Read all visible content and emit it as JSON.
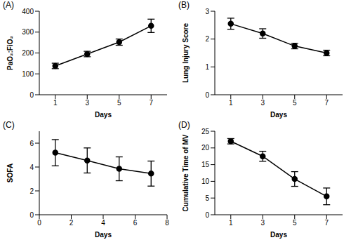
{
  "chart_data": [
    {
      "type": "line",
      "title": "(A)",
      "xlabel": "Days",
      "ylabel": "PaO₂:FiO₂",
      "x": [
        1,
        3,
        5,
        7
      ],
      "values": [
        138,
        195,
        252,
        330
      ],
      "errors": [
        13,
        13,
        15,
        32
      ],
      "xlim": [
        0,
        8
      ],
      "xticks": [
        1,
        3,
        5,
        7
      ],
      "ylim": [
        0,
        400
      ],
      "yticks": [
        0,
        100,
        200,
        300,
        400
      ],
      "color": "#000000",
      "marker": "circle",
      "line_style": "solid",
      "grid": false
    },
    {
      "type": "line",
      "title": "(B)",
      "xlabel": "Days",
      "ylabel": "Lung Injury Score",
      "x": [
        1,
        3,
        5,
        7
      ],
      "values": [
        2.55,
        2.2,
        1.75,
        1.5
      ],
      "errors": [
        0.2,
        0.17,
        0.1,
        0.1
      ],
      "xlim": [
        0,
        8
      ],
      "xticks": [
        1,
        3,
        5,
        7
      ],
      "ylim": [
        0,
        3
      ],
      "yticks": [
        0,
        1,
        2,
        3
      ],
      "color": "#000000",
      "marker": "circle",
      "line_style": "solid",
      "grid": false
    },
    {
      "type": "line",
      "title": "(C)",
      "xlabel": "Days",
      "ylabel": "SOFA",
      "x": [
        1,
        3,
        5,
        7
      ],
      "values": [
        5.2,
        4.55,
        3.85,
        3.45
      ],
      "errors": [
        1.1,
        1.05,
        1.0,
        1.05
      ],
      "xlim": [
        0,
        8
      ],
      "xticks": [
        0,
        2,
        4,
        6,
        8
      ],
      "ylim": [
        0,
        7
      ],
      "yticks": [
        0,
        2,
        4,
        6
      ],
      "color": "#000000",
      "marker": "circle",
      "line_style": "solid",
      "grid": false
    },
    {
      "type": "line",
      "title": "(D)",
      "xlabel": "Days",
      "ylabel": "Cumulative Time of MV",
      "x": [
        1,
        3,
        5,
        7
      ],
      "values": [
        22,
        17.5,
        10.7,
        5.5
      ],
      "errors": [
        0.8,
        1.5,
        2.2,
        2.5
      ],
      "xlim": [
        0,
        8
      ],
      "xticks": [
        1,
        3,
        5,
        7
      ],
      "ylim": [
        0,
        25
      ],
      "yticks": [
        0,
        5,
        10,
        15,
        20,
        25
      ],
      "color": "#000000",
      "marker": "circle",
      "line_style": "solid",
      "grid": false
    }
  ]
}
